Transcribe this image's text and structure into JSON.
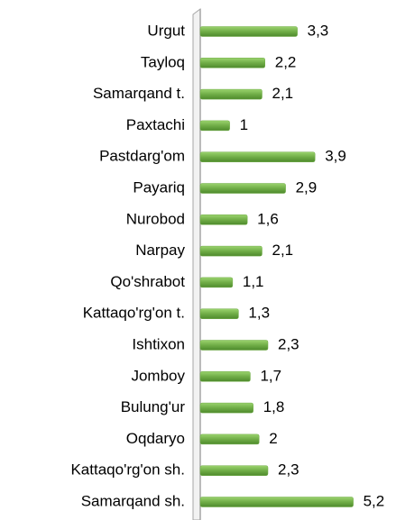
{
  "chart_data": {
    "type": "bar",
    "orientation": "horizontal",
    "categories": [
      "Urgut",
      "Tayloq",
      "Samarqand t.",
      "Paxtachi",
      "Pastdarg'om",
      "Payariq",
      "Nurobod",
      "Narpay",
      "Qo'shrabot",
      "Kattaqo'rg'on t.",
      "Ishtixon",
      "Jomboy",
      "Bulung'ur",
      "Oqdaryo",
      "Kattaqo'rg'on sh.",
      "Samarqand sh."
    ],
    "values": [
      3.3,
      2.2,
      2.1,
      1,
      3.9,
      2.9,
      1.6,
      2.1,
      1.1,
      1.3,
      2.3,
      1.7,
      1.8,
      2,
      2.3,
      5.2
    ],
    "value_labels": [
      "3,3",
      "2,2",
      "2,1",
      "1",
      "3,9",
      "2,9",
      "1,6",
      "2,1",
      "1,1",
      "1,3",
      "2,3",
      "1,7",
      "1,8",
      "2",
      "2,3",
      "5,2"
    ],
    "color": "#70ad47",
    "xlim": [
      0,
      6.5
    ]
  }
}
